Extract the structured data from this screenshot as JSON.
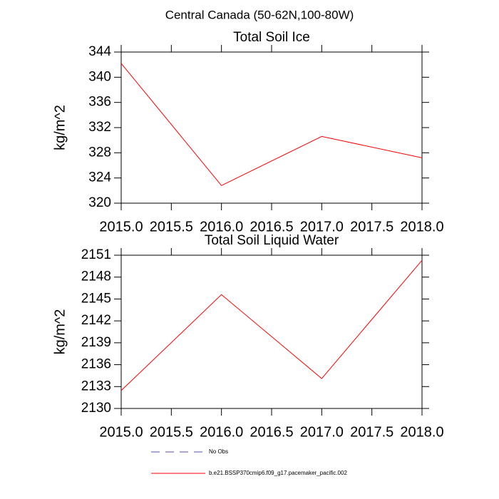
{
  "title": "Central Canada (50-62N,100-80W)",
  "chart_data": [
    {
      "type": "line",
      "title": "Total Soil Ice",
      "ylabel": "kg/m^2",
      "x": [
        2015,
        2016,
        2017,
        2018
      ],
      "series": [
        {
          "color": "#ff0000",
          "values": [
            342.2,
            322.8,
            330.6,
            327.2
          ]
        }
      ],
      "xlim": [
        2015,
        2018
      ],
      "xticks": [
        {
          "value": 2015,
          "label": "2015.0"
        },
        {
          "value": 2015.5,
          "label": "2015.5"
        },
        {
          "value": 2016,
          "label": "2016.0"
        },
        {
          "value": 2016.5,
          "label": "2016.5"
        },
        {
          "value": 2017,
          "label": "2017.0"
        },
        {
          "value": 2017.5,
          "label": "2017.5"
        },
        {
          "value": 2018,
          "label": "2018.0"
        }
      ],
      "ylim": [
        320,
        344
      ],
      "yticks": [
        320,
        324,
        328,
        332,
        336,
        340,
        344
      ]
    },
    {
      "type": "line",
      "title": "Total Soil Liquid Water",
      "ylabel": "kg/m^2",
      "x": [
        2015,
        2016,
        2017,
        2018
      ],
      "series": [
        {
          "color": "#ff0000",
          "values": [
            2132.45,
            2145.6,
            2134.1,
            2150.3
          ]
        }
      ],
      "xlim": [
        2015,
        2018
      ],
      "xticks": [
        {
          "value": 2015,
          "label": "2015.0"
        },
        {
          "value": 2015.5,
          "label": "2015.5"
        },
        {
          "value": 2016,
          "label": "2016.0"
        },
        {
          "value": 2016.5,
          "label": "2016.5"
        },
        {
          "value": 2017,
          "label": "2017.0"
        },
        {
          "value": 2017.5,
          "label": "2017.5"
        },
        {
          "value": 2018,
          "label": "2018.0"
        }
      ],
      "ylim": [
        2130,
        2151
      ],
      "yticks": [
        2130,
        2133,
        2136,
        2139,
        2142,
        2145,
        2148,
        2151
      ]
    }
  ],
  "legend": [
    {
      "name": "No Obs",
      "color": "#5050b0",
      "dashed": true
    },
    {
      "name": "b.e21.BSSP370cmip6.f09_g17.pacemaker_pacific.002",
      "color": "#ff0000",
      "dashed": false
    }
  ]
}
